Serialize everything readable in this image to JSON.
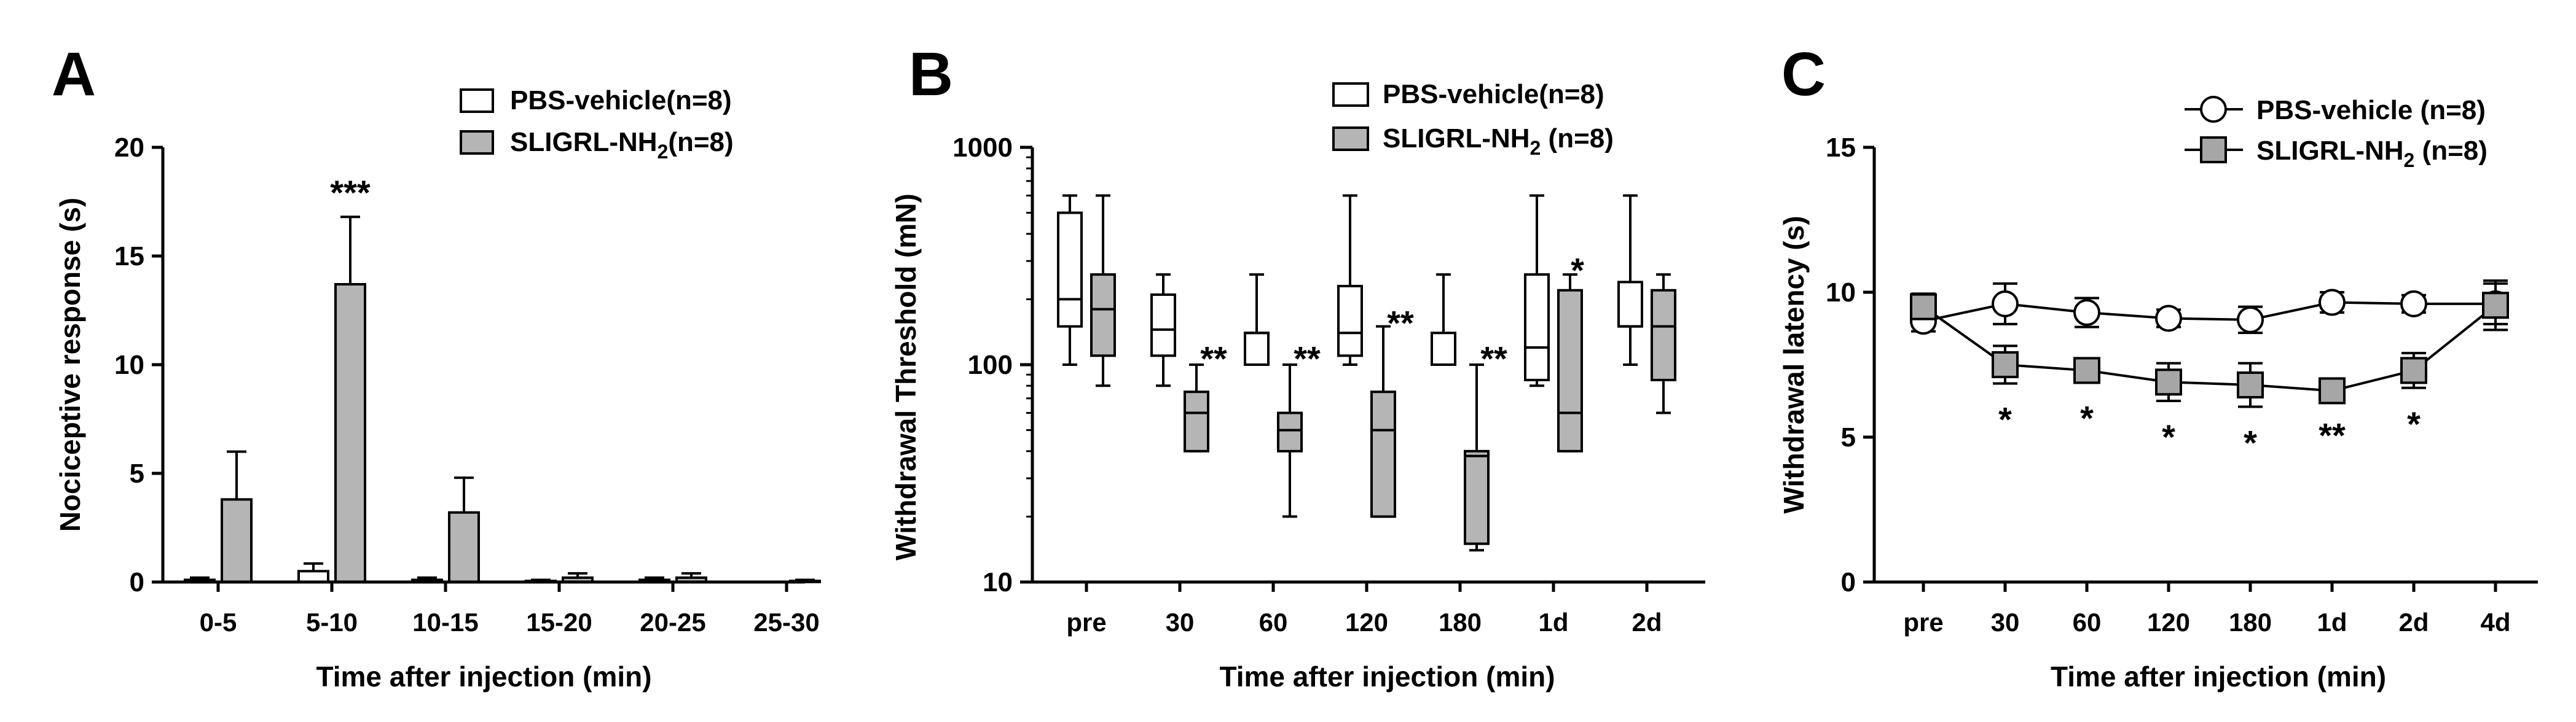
{
  "colors": {
    "axis": "#000000",
    "fill_vehicle": "#ffffff",
    "fill_sligrl": "#b5b5b5",
    "marker_vehicle": "#ffffff",
    "marker_sligrl": "#a6a6a6"
  },
  "chart_data": [
    {
      "panel_label": "A",
      "type": "bar",
      "title": "",
      "xlabel": "Time after injection (min)",
      "ylabel": "Nociceptive response (s)",
      "categories": [
        "0-5",
        "5-10",
        "10-15",
        "15-20",
        "20-25",
        "25-30"
      ],
      "ylim": [
        0,
        20
      ],
      "yticks": [
        0,
        5,
        10,
        15,
        20
      ],
      "grid": false,
      "legend_position": "top-right",
      "legend": [
        {
          "name": "PBS-vehicle(n=8)",
          "label_main": "PBS-vehicle(n=8)",
          "label_sub": "",
          "label_tail": ""
        },
        {
          "name": "SLIGRL-NH2(n=8)",
          "label_main": "SLIGRL-NH",
          "label_sub": "2",
          "label_tail": "(n=8)"
        }
      ],
      "series": [
        {
          "name": "PBS-vehicle(n=8)",
          "values": [
            0.1,
            0.5,
            0.1,
            0.05,
            0.1,
            0.0
          ],
          "errors": [
            0.1,
            0.35,
            0.1,
            0.05,
            0.1,
            0.0
          ]
        },
        {
          "name": "SLIGRL-NH2(n=8)",
          "values": [
            3.8,
            13.7,
            3.2,
            0.2,
            0.2,
            0.05
          ],
          "errors": [
            2.2,
            3.1,
            1.6,
            0.2,
            0.2,
            0.05
          ]
        }
      ],
      "annotations": [
        {
          "category_index": 1,
          "text": "***",
          "y": 18.0
        }
      ]
    },
    {
      "panel_label": "B",
      "type": "boxplot",
      "title": "",
      "xlabel": "Time after injection (min)",
      "ylabel": "Withdrawal Threshold (mN)",
      "categories": [
        "pre",
        "30",
        "60",
        "120",
        "180",
        "1d",
        "2d"
      ],
      "yscale": "log",
      "ylim": [
        10,
        1000
      ],
      "yticks": [
        10,
        100,
        1000
      ],
      "yticklabels": [
        "10",
        "100",
        "1000"
      ],
      "grid": false,
      "legend_position": "top-right",
      "legend": [
        {
          "name": "PBS-vehicle(n=8)",
          "label_main": "PBS-vehicle(n=8)",
          "label_sub": "",
          "label_tail": ""
        },
        {
          "name": "SLIGRL-NH2 (n=8)",
          "label_main": "SLIGRL-NH",
          "label_sub": "2",
          "label_tail": " (n=8)"
        }
      ],
      "series": [
        {
          "name": "PBS-vehicle(n=8)",
          "boxes": [
            {
              "min": 100,
              "q1": 150,
              "median": 200,
              "q3": 500,
              "max": 600
            },
            {
              "min": 80,
              "q1": 110,
              "median": 145,
              "q3": 210,
              "max": 260
            },
            {
              "min": 100,
              "q1": 100,
              "median": 140,
              "q3": 140,
              "max": 260
            },
            {
              "min": 100,
              "q1": 110,
              "median": 140,
              "q3": 230,
              "max": 600
            },
            {
              "min": 100,
              "q1": 100,
              "median": 100,
              "q3": 140,
              "max": 260
            },
            {
              "min": 80,
              "q1": 85,
              "median": 120,
              "q3": 260,
              "max": 600
            },
            {
              "min": 100,
              "q1": 150,
              "median": 150,
              "q3": 240,
              "max": 600
            }
          ]
        },
        {
          "name": "SLIGRL-NH2 (n=8)",
          "boxes": [
            {
              "min": 80,
              "q1": 110,
              "median": 180,
              "q3": 260,
              "max": 600
            },
            {
              "min": 40,
              "q1": 40,
              "median": 60,
              "q3": 75,
              "max": 100
            },
            {
              "min": 20,
              "q1": 40,
              "median": 50,
              "q3": 60,
              "max": 100
            },
            {
              "min": 20,
              "q1": 20,
              "median": 50,
              "q3": 75,
              "max": 150
            },
            {
              "min": 14,
              "q1": 15,
              "median": 38,
              "q3": 40,
              "max": 100
            },
            {
              "min": 40,
              "q1": 40,
              "median": 60,
              "q3": 220,
              "max": 260
            },
            {
              "min": 60,
              "q1": 85,
              "median": 150,
              "q3": 220,
              "max": 260
            }
          ]
        }
      ],
      "annotations": [
        {
          "category_index": 1,
          "text": "**",
          "y": 110
        },
        {
          "category_index": 2,
          "text": "**",
          "y": 110
        },
        {
          "category_index": 3,
          "text": "**",
          "y": 160
        },
        {
          "category_index": 4,
          "text": "**",
          "y": 110
        },
        {
          "category_index": 5,
          "text": "*",
          "y": 280
        }
      ]
    },
    {
      "panel_label": "C",
      "type": "line",
      "title": "",
      "xlabel": "Time after injection (min)",
      "ylabel": "Withdrawal latency (s)",
      "categories": [
        "pre",
        "30",
        "60",
        "120",
        "180",
        "1d",
        "2d",
        "4d"
      ],
      "ylim": [
        0,
        15
      ],
      "yticks": [
        0,
        5,
        10,
        15
      ],
      "grid": false,
      "legend_position": "top-right",
      "legend": [
        {
          "name": "PBS-vehicle (n=8)",
          "label_main": "PBS-vehicle (n=8)",
          "label_sub": "",
          "label_tail": ""
        },
        {
          "name": "SLIGRL-NH2 (n=8)",
          "label_main": "SLIGRL-NH",
          "label_sub": "2",
          "label_tail": " (n=8)"
        }
      ],
      "series": [
        {
          "name": "PBS-vehicle (n=8)",
          "marker": "circle",
          "values": [
            9.0,
            9.6,
            9.3,
            9.1,
            9.05,
            9.65,
            9.6,
            9.6
          ],
          "errors": [
            0.35,
            0.7,
            0.5,
            0.3,
            0.45,
            0.35,
            0.3,
            0.7
          ]
        },
        {
          "name": "SLIGRL-NH2 (n=8)",
          "marker": "square",
          "values": [
            9.5,
            7.5,
            7.3,
            6.9,
            6.8,
            6.6,
            7.3,
            9.55
          ],
          "errors": [
            0.45,
            0.65,
            0.4,
            0.65,
            0.75,
            0.3,
            0.6,
            0.85
          ]
        }
      ],
      "annotations": [
        {
          "category_index": 1,
          "text": "*"
        },
        {
          "category_index": 2,
          "text": "*"
        },
        {
          "category_index": 3,
          "text": "*"
        },
        {
          "category_index": 4,
          "text": "*"
        },
        {
          "category_index": 5,
          "text": "**"
        },
        {
          "category_index": 6,
          "text": "*"
        }
      ]
    }
  ]
}
